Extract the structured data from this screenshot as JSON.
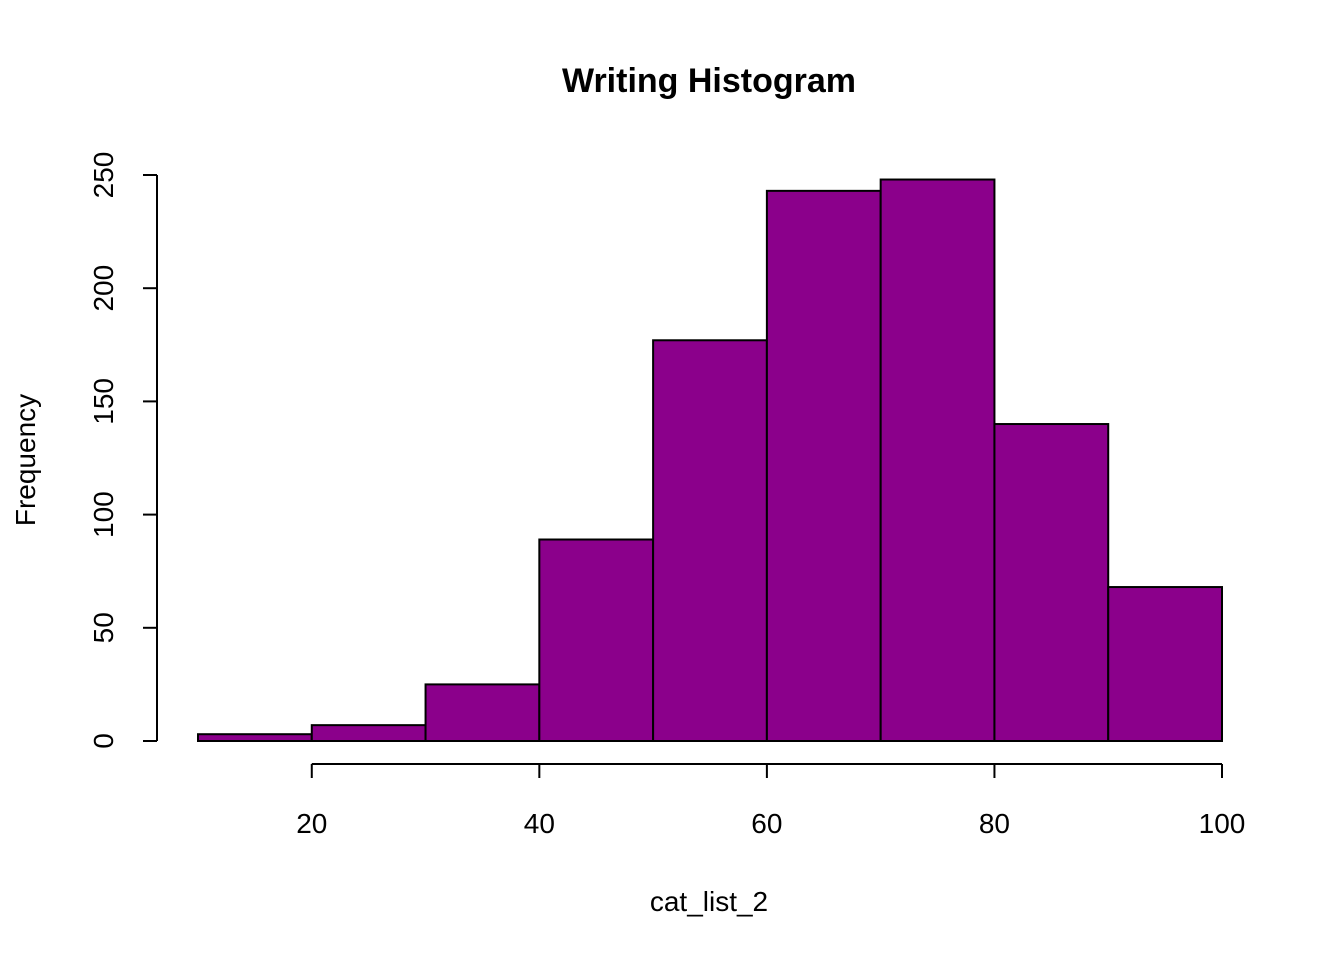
{
  "chart_data": {
    "type": "bar",
    "subtype": "histogram",
    "title": "Writing Histogram",
    "xlabel": "cat_list_2",
    "ylabel": "Frequency",
    "bin_edges": [
      10,
      20,
      30,
      40,
      50,
      60,
      70,
      80,
      90,
      100
    ],
    "values": [
      3,
      7,
      25,
      89,
      177,
      243,
      248,
      140,
      68
    ],
    "xlim": [
      10,
      100
    ],
    "ylim": [
      0,
      250
    ],
    "x_ticks": [
      20,
      40,
      60,
      80,
      100
    ],
    "y_ticks": [
      0,
      50,
      100,
      150,
      200,
      250
    ],
    "x_tick_labels": [
      "20",
      "40",
      "60",
      "80",
      "100"
    ],
    "y_tick_labels": [
      "0",
      "50",
      "100",
      "150",
      "200",
      "250"
    ],
    "bar_color": "#8B008B",
    "bar_border_color": "#000000",
    "grid": false,
    "legend": "none"
  }
}
